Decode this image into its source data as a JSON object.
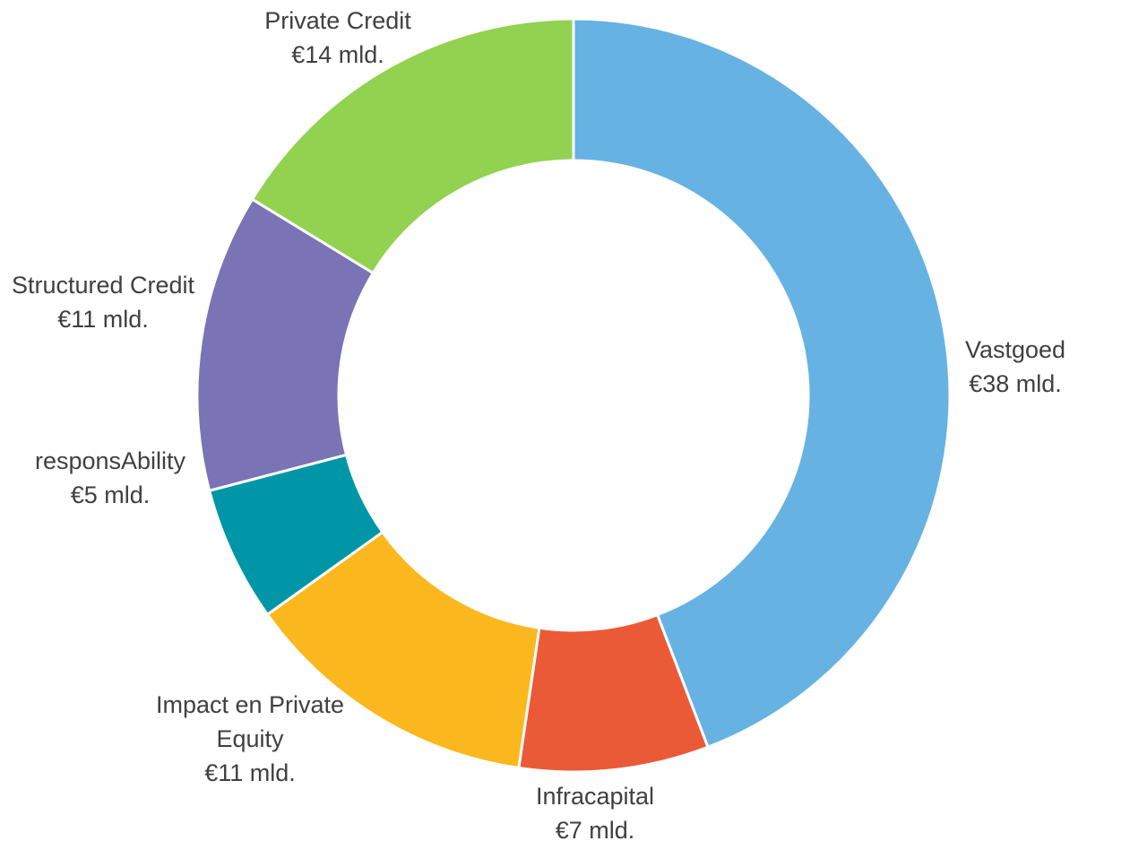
{
  "chart_data": {
    "type": "pie",
    "subtype": "donut",
    "title": "",
    "unit": "€ mld.",
    "series": [
      {
        "name": "Vastgoed",
        "value": 38,
        "label_lines": [
          "Vastgoed",
          "€38 mld."
        ],
        "color": "#66b2e3"
      },
      {
        "name": "Infracapital",
        "value": 7,
        "label_lines": [
          "Infracapital",
          "€7 mld."
        ],
        "color": "#eb5a36"
      },
      {
        "name": "Impact en Private Equity",
        "value": 11,
        "label_lines": [
          "Impact en Private",
          "Equity",
          "€11 mld."
        ],
        "color": "#fbb81e"
      },
      {
        "name": "responsAbility",
        "value": 5,
        "label_lines": [
          "responsAbility",
          "€5 mld."
        ],
        "color": "#0096a7"
      },
      {
        "name": "Structured Credit",
        "value": 11,
        "label_lines": [
          "Structured Credit",
          "€11 mld."
        ],
        "color": "#7a73b5"
      },
      {
        "name": "Private Credit",
        "value": 14,
        "label_lines": [
          "Private Credit",
          "€14 mld."
        ],
        "color": "#93d150"
      }
    ]
  }
}
